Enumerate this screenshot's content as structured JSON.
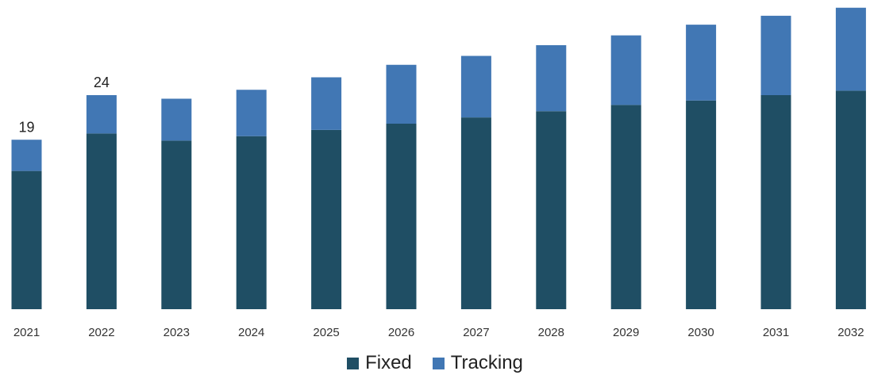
{
  "chart_data": {
    "type": "bar",
    "stacked": true,
    "title": "",
    "xlabel": "",
    "ylabel": "",
    "categories": [
      "2021",
      "2022",
      "2023",
      "2024",
      "2025",
      "2026",
      "2027",
      "2028",
      "2029",
      "2030",
      "2031",
      "2032"
    ],
    "series": [
      {
        "name": "Fixed",
        "color": "#1f4e64",
        "values": [
          15.5,
          19.7,
          18.9,
          19.4,
          20.1,
          20.8,
          21.5,
          22.2,
          22.9,
          23.4,
          24.0,
          24.5
        ]
      },
      {
        "name": "Tracking",
        "color": "#4177b4",
        "values": [
          3.5,
          4.3,
          4.7,
          5.2,
          5.9,
          6.6,
          6.9,
          7.4,
          7.8,
          8.5,
          8.9,
          9.3
        ]
      }
    ],
    "data_labels": [
      {
        "category": "2021",
        "text": "19"
      },
      {
        "category": "2022",
        "text": "24"
      }
    ],
    "ylim": [
      0,
      34
    ],
    "y_axis_visible": false,
    "grid": false,
    "legend": {
      "position": "bottom",
      "entries": [
        "Fixed",
        "Tracking"
      ]
    }
  }
}
